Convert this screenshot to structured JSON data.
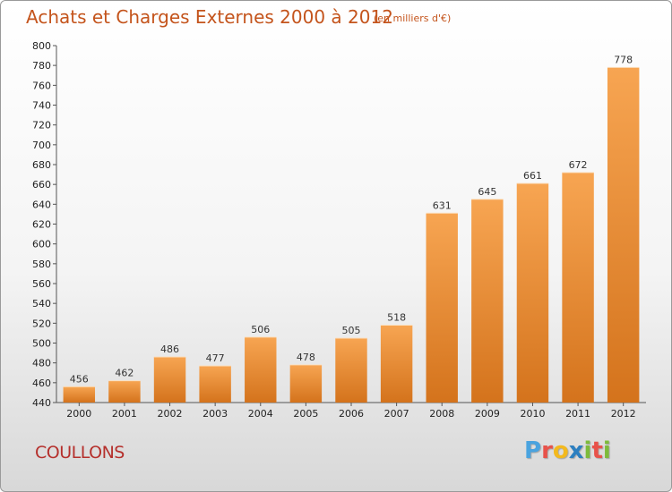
{
  "title": "Achats et Charges Externes 2000 à 2012",
  "subtitle": "(en milliers d'€)",
  "commune": "COULLONS",
  "brand": {
    "letters": [
      {
        "ch": "P",
        "color": "#4aa3df"
      },
      {
        "ch": "r",
        "color": "#e8524a"
      },
      {
        "ch": "o",
        "color": "#f3b91e"
      },
      {
        "ch": "x",
        "color": "#2c7fc0"
      },
      {
        "ch": "i",
        "color": "#7dbb3b"
      },
      {
        "ch": "t",
        "color": "#e8524a"
      },
      {
        "ch": "i",
        "color": "#7dbb3b"
      }
    ]
  },
  "colors": {
    "bar_top": "#f7a552",
    "bar_bottom": "#d4731c",
    "title": "#c4541c",
    "commune": "#b5302c"
  },
  "chart_data": {
    "type": "bar",
    "categories": [
      "2000",
      "2001",
      "2002",
      "2003",
      "2004",
      "2005",
      "2006",
      "2007",
      "2008",
      "2009",
      "2010",
      "2011",
      "2012"
    ],
    "values": [
      456,
      462,
      486,
      477,
      506,
      478,
      505,
      518,
      631,
      645,
      661,
      672,
      778
    ],
    "title": "Achats et Charges Externes 2000 à 2012",
    "xlabel": "",
    "ylabel": "",
    "ylim": [
      440,
      800
    ],
    "ytick_step": 20,
    "grid": false
  }
}
